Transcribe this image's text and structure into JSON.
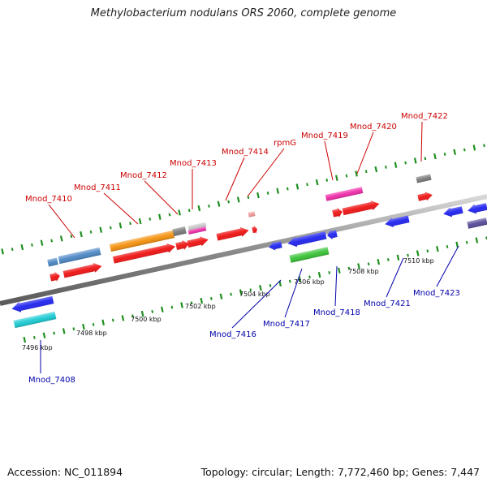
{
  "title": "Methylobacterium nodulans ORS 2060, complete genome",
  "footer": {
    "accession": "Accession: NC_011894",
    "summary": "Topology: circular; Length: 7,772,460 bp; Genes: 7,447"
  },
  "scale": {
    "unit": "kbp",
    "ticks": [
      "7496 kbp",
      "7498 kbp",
      "7500 kbp",
      "7502 kbp",
      "7504 kbp",
      "7506 kbp",
      "7508 kbp",
      "7510 kbp"
    ]
  },
  "colors": {
    "backbone": "#8c8c8c",
    "tick": "#1f8f1f",
    "forward_label": "#cc0000",
    "reverse_label": "#0000aa",
    "red": "#ee1111",
    "orange": "#f4900a",
    "steel": "#4a86c4",
    "gray": "#7a7a7a",
    "light_gray": "#c8c8c8",
    "magenta": "#ee2aa8",
    "pink": "#f49a9a",
    "blue": "#1e22ee",
    "cyan": "#19c9d2",
    "green": "#36c233",
    "purple": "#544a98"
  },
  "labels": {
    "forward": [
      "Mnod_7410",
      "Mnod_7411",
      "Mnod_7412",
      "Mnod_7413",
      "Mnod_7414",
      "rpmG",
      "Mnod_7419",
      "Mnod_7420",
      "Mnod_7422"
    ],
    "reverse": [
      "Mnod_7408",
      "Mnod_7416",
      "Mnod_7417",
      "Mnod_7418",
      "Mnod_7421",
      "Mnod_7423"
    ]
  }
}
